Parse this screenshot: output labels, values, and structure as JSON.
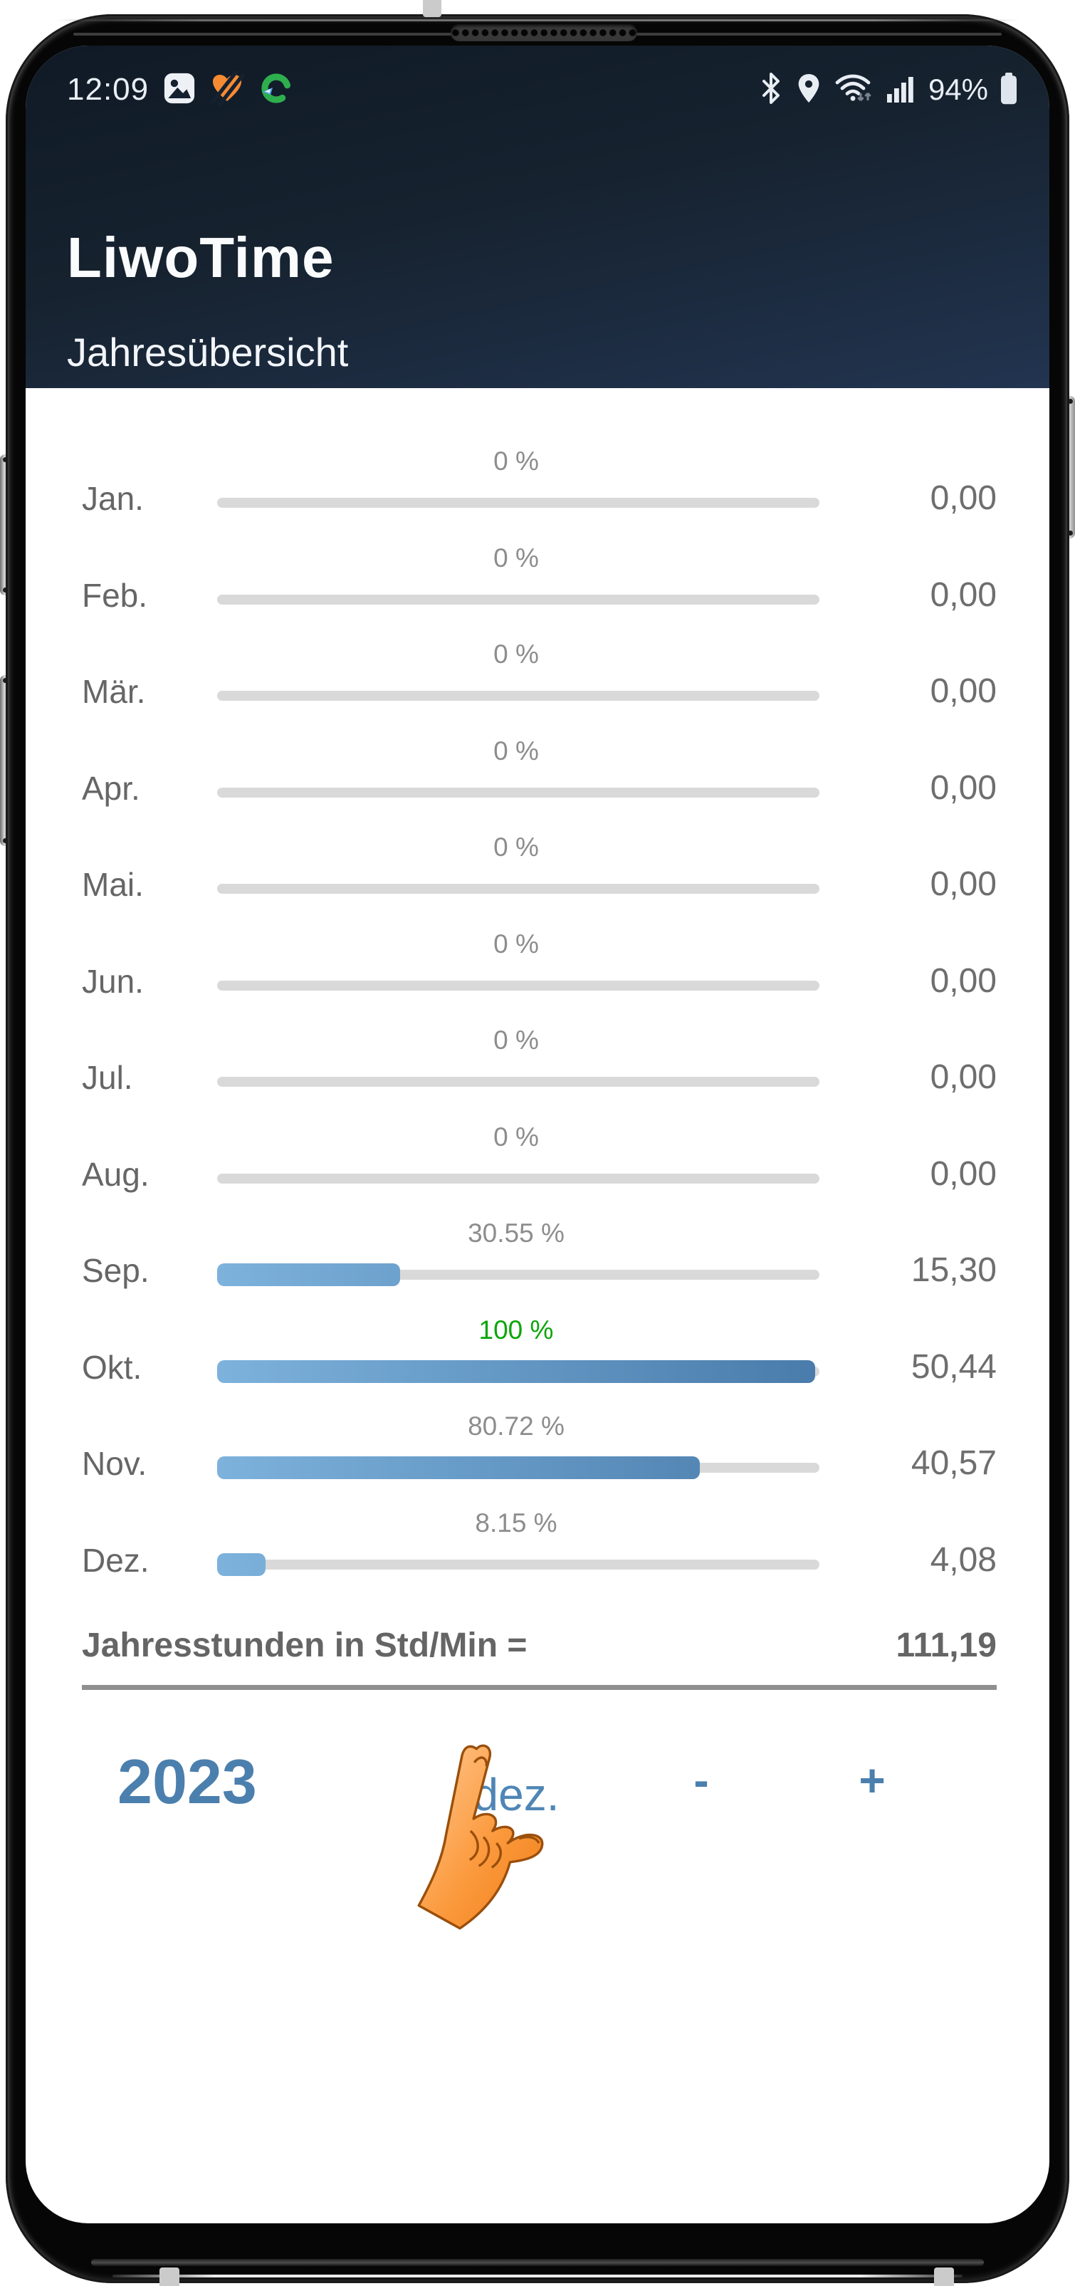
{
  "status_bar": {
    "time": "12:09",
    "battery_pct": "94%",
    "left_icons": [
      "gallery-icon",
      "health-heart-icon",
      "sync-circle-icon"
    ],
    "right_icons": [
      "bluetooth-icon",
      "location-icon",
      "wifi-icon",
      "signal-icon",
      "battery-icon"
    ]
  },
  "header": {
    "app_title": "LiwoTime",
    "subtitle": "Jahresübersicht"
  },
  "months": [
    {
      "label": "Jan.",
      "pct": "0 %",
      "pct_value": 0,
      "value": "0,00"
    },
    {
      "label": "Feb.",
      "pct": "0 %",
      "pct_value": 0,
      "value": "0,00"
    },
    {
      "label": "Mär.",
      "pct": "0 %",
      "pct_value": 0,
      "value": "0,00"
    },
    {
      "label": "Apr.",
      "pct": "0 %",
      "pct_value": 0,
      "value": "0,00"
    },
    {
      "label": "Mai.",
      "pct": "0 %",
      "pct_value": 0,
      "value": "0,00"
    },
    {
      "label": "Jun.",
      "pct": "0 %",
      "pct_value": 0,
      "value": "0,00"
    },
    {
      "label": "Jul.",
      "pct": "0 %",
      "pct_value": 0,
      "value": "0,00"
    },
    {
      "label": "Aug.",
      "pct": "0 %",
      "pct_value": 0,
      "value": "0,00"
    },
    {
      "label": "Sep.",
      "pct": "30.55 %",
      "pct_value": 30.55,
      "value": "15,30"
    },
    {
      "label": "Okt.",
      "pct": "100 %",
      "pct_value": 100,
      "value": "50,44"
    },
    {
      "label": "Nov.",
      "pct": "80.72 %",
      "pct_value": 80.72,
      "value": "40,57"
    },
    {
      "label": "Dez.",
      "pct": "8.15 %",
      "pct_value": 8.15,
      "value": "4,08"
    }
  ],
  "total": {
    "label": "Jahresstunden in Std/Min =",
    "value": "111,19"
  },
  "controls": {
    "year": "2023",
    "month": "dez.",
    "minus": "-",
    "plus": "+",
    "pointer_icon": "pointing-hand-icon"
  },
  "colors": {
    "header_bg": "#16222f",
    "accent_blue": "#4b7fad",
    "bar_light": "#7db2dc",
    "bar_dark": "#4a7cab",
    "track_gray": "#d9d9d9",
    "pct_green": "#0aa50a",
    "text_gray": "#666666"
  }
}
